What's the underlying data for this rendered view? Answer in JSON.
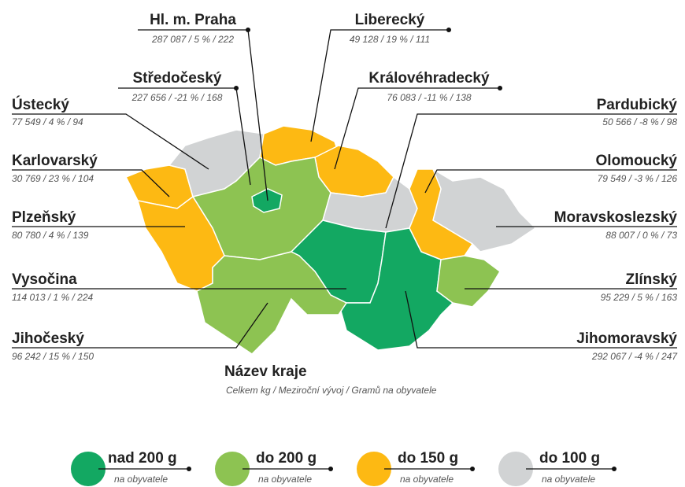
{
  "regions": [
    {
      "name": "Hl. m. Praha",
      "stats": "287 087 / 5 % / 222",
      "color": "#13a862"
    },
    {
      "name": "Liberecký",
      "stats": "49 128 / 19 % / 111",
      "color": "#fdb913"
    },
    {
      "name": "Středočeský",
      "stats": "227 656 / -21 % / 168",
      "color": "#8dc352"
    },
    {
      "name": "Královéhradecký",
      "stats": "76 083 / -11 % / 138",
      "color": "#fdb913"
    },
    {
      "name": "Ústecký",
      "stats": "77 549 / 4 % / 94",
      "color": "#d1d3d4"
    },
    {
      "name": "Pardubický",
      "stats": "50 566 / -8 % / 98",
      "color": "#d1d3d4"
    },
    {
      "name": "Karlovarský",
      "stats": "30 769 / 23 % / 104",
      "color": "#fdb913"
    },
    {
      "name": "Olomoucký",
      "stats": "79 549 / -3 % / 126",
      "color": "#fdb913"
    },
    {
      "name": "Plzeňský",
      "stats": "80 780 / 4 % / 139",
      "color": "#fdb913"
    },
    {
      "name": "Moravskoslezský",
      "stats": "88 007 / 0 % / 73",
      "color": "#d1d3d4"
    },
    {
      "name": "Vysočina",
      "stats": "114 013 / 1 % / 224",
      "color": "#13a862"
    },
    {
      "name": "Zlínský",
      "stats": "95 229 / 5 % / 163",
      "color": "#8dc352"
    },
    {
      "name": "Jihočeský",
      "stats": "96 242 / 15 % / 150",
      "color": "#8dc352"
    },
    {
      "name": "Jihomoravský",
      "stats": "292 067 / -4 % / 247",
      "color": "#13a862"
    }
  ],
  "legend_title": "Název kraje",
  "legend_subtitle": "Celkem kg / Meziroční vývoj / Gramů na obyvatele",
  "legend": [
    {
      "label": "nad 200 g",
      "sublabel": "na obyvatele",
      "color": "#13a862"
    },
    {
      "label": "do 200 g",
      "sublabel": "na obyvatele",
      "color": "#8dc352"
    },
    {
      "label": "do 150 g",
      "sublabel": "na obyvatele",
      "color": "#fdb913"
    },
    {
      "label": "do 100 g",
      "sublabel": "na obyvatele",
      "color": "#d1d3d4"
    }
  ]
}
